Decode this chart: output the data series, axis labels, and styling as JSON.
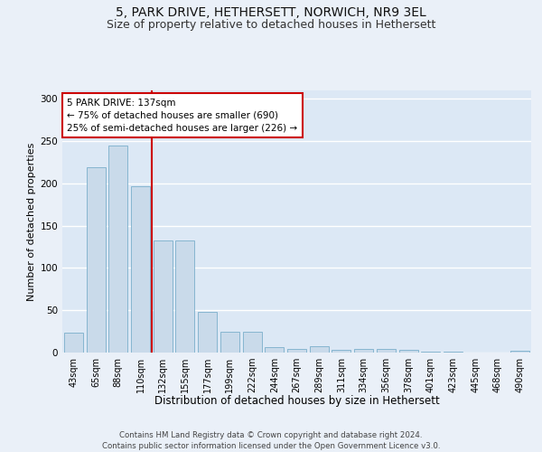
{
  "title1": "5, PARK DRIVE, HETHERSETT, NORWICH, NR9 3EL",
  "title2": "Size of property relative to detached houses in Hethersett",
  "xlabel": "Distribution of detached houses by size in Hethersett",
  "ylabel": "Number of detached properties",
  "categories": [
    "43sqm",
    "65sqm",
    "88sqm",
    "110sqm",
    "132sqm",
    "155sqm",
    "177sqm",
    "199sqm",
    "222sqm",
    "244sqm",
    "267sqm",
    "289sqm",
    "311sqm",
    "334sqm",
    "356sqm",
    "378sqm",
    "401sqm",
    "423sqm",
    "445sqm",
    "468sqm",
    "490sqm"
  ],
  "values": [
    23,
    219,
    245,
    197,
    133,
    133,
    48,
    25,
    25,
    6,
    4,
    7,
    3,
    4,
    4,
    3,
    1,
    1,
    0,
    0,
    2
  ],
  "bar_color": "#c9daea",
  "bar_edge_color": "#7aaecb",
  "background_color": "#eaf0f8",
  "plot_bg_color": "#dce8f5",
  "grid_color": "#ffffff",
  "property_label": "5 PARK DRIVE: 137sqm",
  "annotation_line1": "← 75% of detached houses are smaller (690)",
  "annotation_line2": "25% of semi-detached houses are larger (226) →",
  "red_line_bin_index": 4,
  "vline_color": "#cc0000",
  "annotation_box_facecolor": "#ffffff",
  "annotation_box_edgecolor": "#cc0000",
  "footer1": "Contains HM Land Registry data © Crown copyright and database right 2024.",
  "footer2": "Contains public sector information licensed under the Open Government Licence v3.0.",
  "ylim": [
    0,
    310
  ],
  "yticks": [
    0,
    50,
    100,
    150,
    200,
    250,
    300
  ],
  "title1_fontsize": 10,
  "title2_fontsize": 9,
  "xlabel_fontsize": 8.5,
  "ylabel_fontsize": 8,
  "tick_fontsize": 7,
  "annotation_fontsize": 7.5,
  "footer_fontsize": 6.2
}
